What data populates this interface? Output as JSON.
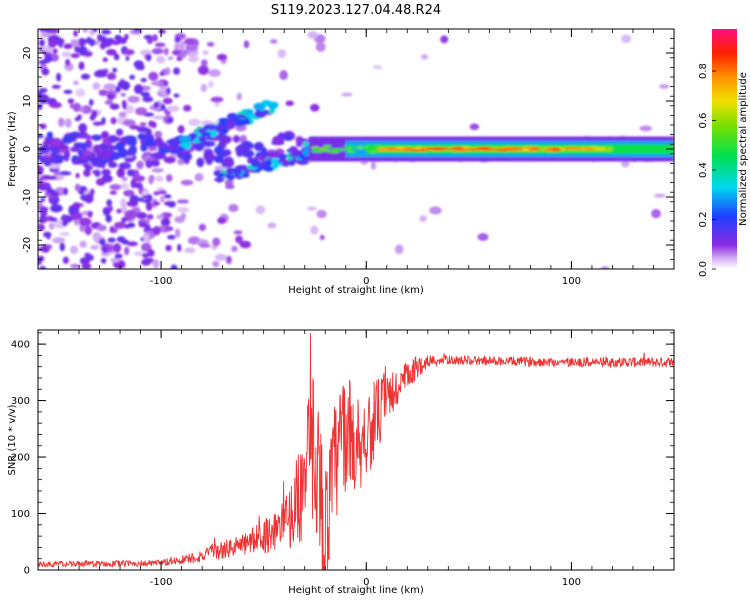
{
  "title": "S119.2023.127.04.48.R24",
  "chart_data": [
    {
      "type": "heatmap",
      "title": "S119.2023.127.04.48.R24",
      "xlabel": "Height of straight line (km)",
      "ylabel": "Frequency (Hz)",
      "xlim": [
        -160,
        150
      ],
      "ylim": [
        -25,
        25
      ],
      "x_ticks": [
        -100,
        0,
        100
      ],
      "y_ticks": [
        -20,
        -10,
        0,
        10,
        20
      ],
      "colorbar": {
        "label": "Normalized spectral amplitude",
        "range": [
          0,
          0.97
        ],
        "ticks": [
          0.0,
          0.2,
          0.4,
          0.6,
          0.8
        ]
      },
      "features": [
        {
          "name": "main carrier band",
          "x_range": [
            -30,
            150
          ],
          "frequency": 0,
          "amplitude": 0.55
        },
        {
          "name": "upper branch",
          "x_range": [
            -95,
            -45
          ],
          "frequency_range": [
            0,
            9
          ],
          "amplitude": 0.3
        },
        {
          "name": "lower branch",
          "x_range": [
            -72,
            -28
          ],
          "frequency_range": [
            -6,
            -1
          ],
          "amplitude": 0.3
        }
      ]
    },
    {
      "type": "line",
      "xlabel": "Height of straight line (km)",
      "ylabel": "SNR (10 * v/v)",
      "xlim": [
        -160,
        150
      ],
      "ylim": [
        0,
        425
      ],
      "x_ticks": [
        -100,
        0,
        100
      ],
      "y_ticks": [
        0,
        100,
        200,
        300,
        400
      ],
      "color": "#ee3333",
      "profile_x": [
        -160,
        -100,
        -80,
        -60,
        -50,
        -40,
        -35,
        -30,
        -25,
        -20,
        -15,
        -10,
        -5,
        0,
        5,
        10,
        15,
        20,
        25,
        30,
        40,
        60,
        100,
        150
      ],
      "profile_y": [
        10,
        12,
        25,
        45,
        60,
        80,
        110,
        160,
        230,
        60,
        190,
        250,
        220,
        240,
        270,
        300,
        320,
        340,
        360,
        370,
        372,
        370,
        368,
        368
      ],
      "noise_amplitude": [
        5,
        6,
        12,
        20,
        30,
        45,
        70,
        110,
        150,
        120,
        120,
        110,
        90,
        80,
        70,
        50,
        40,
        30,
        20,
        12,
        8,
        8,
        9,
        9
      ]
    }
  ]
}
